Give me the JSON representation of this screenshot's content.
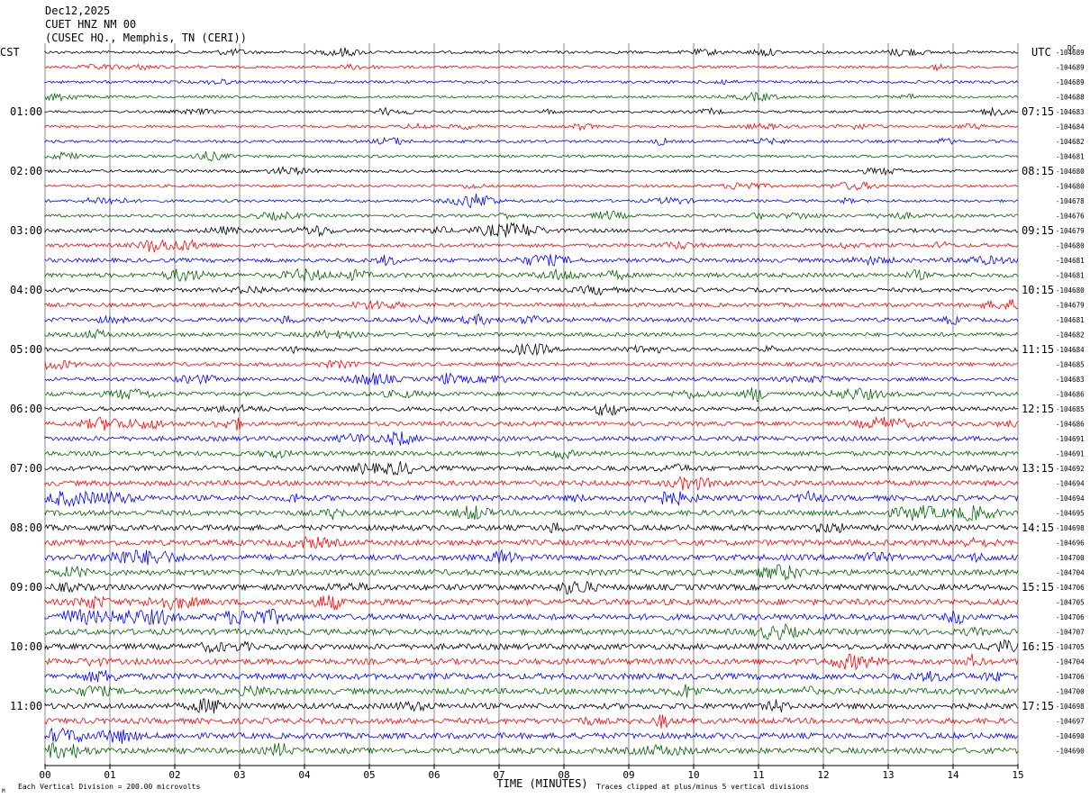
{
  "header": {
    "date": "Dec12,2025",
    "station": "CUET HNZ NM 00",
    "location": "(CUSEC HQ., Memphis, TN (CERI))"
  },
  "left_timezone": "CST",
  "right_timezone": "UTC",
  "dc_label": "DC",
  "footer": {
    "scale_note": "Each Vertical Division =  200.00 microvolts",
    "xlabel": "TIME (MINUTES)",
    "clip_note": "Traces clipped at plus/minus 5 vertical divisions",
    "corner_mark": "M"
  },
  "colors": {
    "trace_cycle": [
      "#000000",
      "#ff0000",
      "#0000ff",
      "#006400"
    ],
    "grid": "#555555"
  },
  "chart_data": {
    "type": "line",
    "subtype": "helicorder",
    "x_ticks": [
      "00",
      "01",
      "02",
      "03",
      "04",
      "05",
      "06",
      "07",
      "08",
      "09",
      "10",
      "11",
      "12",
      "13",
      "14",
      "15"
    ],
    "xlim": [
      0,
      15
    ],
    "minutes_per_trace": 15,
    "num_traces": 48,
    "left_hour_labels": [
      {
        "trace": 4,
        "label": "01:00"
      },
      {
        "trace": 8,
        "label": "02:00"
      },
      {
        "trace": 12,
        "label": "03:00"
      },
      {
        "trace": 16,
        "label": "04:00"
      },
      {
        "trace": 20,
        "label": "05:00"
      },
      {
        "trace": 24,
        "label": "06:00"
      },
      {
        "trace": 28,
        "label": "07:00"
      },
      {
        "trace": 32,
        "label": "08:00"
      },
      {
        "trace": 36,
        "label": "09:00"
      },
      {
        "trace": 40,
        "label": "10:00"
      },
      {
        "trace": 44,
        "label": "11:00"
      }
    ],
    "right_hour_labels": [
      {
        "trace": 4,
        "label": "07:15"
      },
      {
        "trace": 8,
        "label": "08:15"
      },
      {
        "trace": 12,
        "label": "09:15"
      },
      {
        "trace": 16,
        "label": "10:15"
      },
      {
        "trace": 20,
        "label": "11:15"
      },
      {
        "trace": 24,
        "label": "12:15"
      },
      {
        "trace": 28,
        "label": "13:15"
      },
      {
        "trace": 32,
        "label": "14:15"
      },
      {
        "trace": 36,
        "label": "15:15"
      },
      {
        "trace": 40,
        "label": "16:15"
      },
      {
        "trace": 44,
        "label": "17:15"
      }
    ],
    "dc_offsets": [
      "-104689",
      "-104689",
      "-104689",
      "-104688",
      "-104683",
      "-104684",
      "-104682",
      "-104681",
      "-104680",
      "-104680",
      "-104678",
      "-104676",
      "-104679",
      "-104680",
      "-104681",
      "-104681",
      "-104680",
      "-104679",
      "-104681",
      "-104682",
      "-104684",
      "-104685",
      "-104683",
      "-104686",
      "-104685",
      "-104686",
      "-104691",
      "-104691",
      "-104692",
      "-104694",
      "-104694",
      "-104695",
      "-104698",
      "-104696",
      "-104700",
      "-104704",
      "-104706",
      "-104705",
      "-104706",
      "-104707",
      "-104705",
      "-104704",
      "-104706",
      "-104700",
      "-104698",
      "-104697",
      "-104690",
      "-104690"
    ],
    "trace_activity": [
      0.35,
      0.3,
      0.35,
      0.3,
      0.3,
      0.3,
      0.35,
      0.35,
      0.35,
      0.35,
      0.35,
      0.4,
      0.55,
      0.55,
      0.65,
      0.7,
      0.65,
      0.6,
      0.65,
      0.6,
      0.55,
      0.55,
      0.6,
      0.65,
      0.65,
      0.65,
      0.75,
      0.75,
      0.8,
      0.85,
      0.9,
      0.9,
      0.95,
      0.95,
      1.0,
      1.0,
      1.0,
      1.05,
      1.05,
      1.0,
      1.0,
      1.0,
      1.05,
      1.0,
      1.0,
      0.95,
      1.0,
      1.0
    ]
  }
}
